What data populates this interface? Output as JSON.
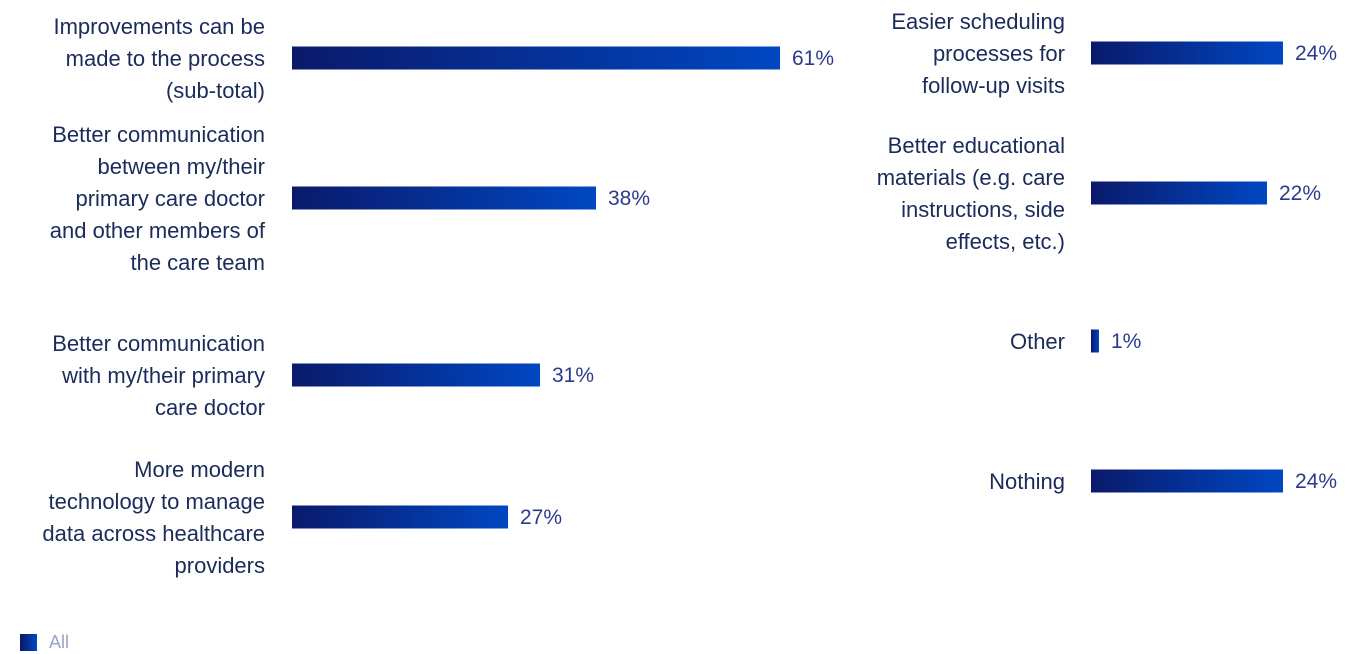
{
  "chart_data": {
    "type": "bar",
    "orientation": "horizontal",
    "unit": "%",
    "panels": [
      {
        "categories": [
          [
            "Improvements can be",
            "made to the process",
            "(sub-total)"
          ],
          [
            "Better communication",
            "between my/their",
            "primary care doctor",
            "and other members of",
            "the care team"
          ],
          [
            "Better communication",
            "with my/their primary",
            "care doctor"
          ],
          [
            "More modern",
            "technology to manage",
            "data across healthcare",
            "providers"
          ]
        ],
        "values": [
          61,
          38,
          31,
          27
        ],
        "value_labels": [
          "61%",
          "38%",
          "31%",
          "27%"
        ]
      },
      {
        "categories": [
          [
            "Easier scheduling",
            "processes for",
            "follow-up visits"
          ],
          [
            "Better educational",
            "materials (e.g. care",
            "instructions, side",
            "effects, etc.)"
          ],
          [
            "Other"
          ],
          [
            "Nothing"
          ]
        ],
        "values": [
          24,
          22,
          1,
          24
        ],
        "value_labels": [
          "24%",
          "22%",
          "1%",
          "24%"
        ]
      }
    ],
    "series": [
      {
        "name": "All"
      }
    ],
    "xlim": [
      0,
      100
    ],
    "grid": false,
    "legend_position": "bottom-left",
    "colors": {
      "bar_start": "#0a1a6b",
      "bar_end": "#0047c2"
    }
  },
  "legend": {
    "label": "All"
  }
}
